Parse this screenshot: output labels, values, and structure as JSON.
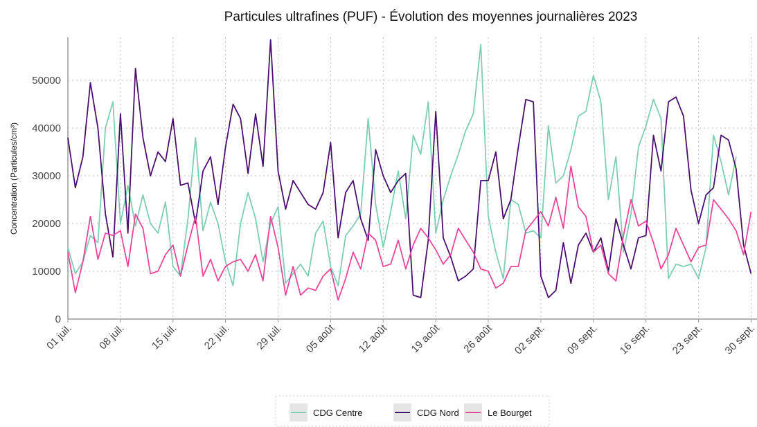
{
  "chart_data": {
    "type": "line",
    "title": "Particules ultrafines (PUF)  - Évolution des moyennes journalières 2023",
    "y_label": "Concentration (Particules/cm³)",
    "categories": [
      "01 juil.",
      null,
      null,
      null,
      null,
      null,
      null,
      "08 juil.",
      null,
      null,
      null,
      null,
      null,
      null,
      "15 juil.",
      null,
      null,
      null,
      null,
      null,
      null,
      "22 juil.",
      null,
      null,
      null,
      null,
      null,
      null,
      "29 juil.",
      null,
      null,
      null,
      null,
      null,
      null,
      "05 août",
      null,
      null,
      null,
      null,
      null,
      null,
      "12 août",
      null,
      null,
      null,
      null,
      null,
      null,
      "19 août",
      null,
      null,
      null,
      null,
      null,
      null,
      "26 août",
      null,
      null,
      null,
      null,
      null,
      null,
      "02 sept.",
      null,
      null,
      null,
      null,
      null,
      null,
      "09 sept.",
      null,
      null,
      null,
      null,
      null,
      null,
      "16 sept.",
      null,
      null,
      null,
      null,
      null,
      null,
      "23 sept.",
      null,
      null,
      null,
      null,
      null,
      null,
      "30 sept."
    ],
    "series": [
      {
        "name": "CDG Centre",
        "color": "#7fcdb4",
        "values": [
          15000,
          9500,
          12000,
          17500,
          16000,
          40000,
          45500,
          20000,
          28000,
          19500,
          26000,
          20000,
          18000,
          24500,
          11000,
          9000,
          21000,
          38000,
          18500,
          24500,
          20000,
          12000,
          7000,
          20000,
          26500,
          21000,
          12000,
          20000,
          23500,
          7500,
          9500,
          11500,
          9000,
          18000,
          20500,
          11000,
          7000,
          17500,
          19500,
          22000,
          42000,
          24000,
          15000,
          22500,
          31000,
          21000,
          38500,
          34500,
          45500,
          18000,
          25000,
          30000,
          34500,
          39500,
          43000,
          57500,
          21500,
          14000,
          8500,
          25000,
          24000,
          18000,
          18500,
          17000,
          40500,
          28500,
          30000,
          35500,
          42500,
          43500,
          51000,
          45500,
          25000,
          34000,
          14000,
          22000,
          36000,
          40500,
          46000,
          42000,
          8500,
          11500,
          11000,
          11500,
          8500,
          15000,
          38500,
          33000,
          26000,
          34000,
          null,
          null
        ]
      },
      {
        "name": "CDG Nord",
        "color": "#4b0f6e",
        "values": [
          38000,
          27500,
          34000,
          49500,
          40000,
          22000,
          13000,
          43000,
          18000,
          52500,
          38000,
          30000,
          35000,
          33000,
          42000,
          28000,
          28500,
          20000,
          31000,
          34000,
          24000,
          36000,
          45000,
          42000,
          30500,
          43000,
          32000,
          58500,
          31000,
          23000,
          29000,
          26500,
          24000,
          23000,
          26500,
          37000,
          17000,
          26500,
          29000,
          21000,
          16500,
          35500,
          30000,
          26500,
          29000,
          30500,
          5000,
          4500,
          16500,
          43500,
          17000,
          13000,
          8000,
          9000,
          10500,
          29000,
          29000,
          35000,
          21000,
          25000,
          36000,
          46000,
          45500,
          9000,
          4500,
          6000,
          16000,
          7500,
          15500,
          18000,
          14000,
          17000,
          10000,
          21000,
          15500,
          10500,
          17000,
          17500,
          38500,
          31000,
          45500,
          46500,
          42500,
          27000,
          20000,
          26000,
          27500,
          38500,
          37500,
          31500,
          15500,
          9500
        ]
      },
      {
        "name": "Le Bourget",
        "color": "#e8489a",
        "values": [
          14000,
          5500,
          12000,
          21500,
          12500,
          18000,
          17500,
          18500,
          11000,
          22000,
          19000,
          9500,
          10000,
          13500,
          15500,
          9000,
          15500,
          21500,
          9000,
          12500,
          8000,
          11000,
          12000,
          12500,
          10000,
          13500,
          8000,
          21500,
          15000,
          5000,
          11000,
          5000,
          6500,
          6000,
          9000,
          10500,
          4000,
          8500,
          14000,
          10500,
          18000,
          16500,
          11000,
          11500,
          16500,
          10500,
          15500,
          19000,
          17000,
          14500,
          11500,
          13500,
          19000,
          16500,
          14000,
          10500,
          10000,
          6500,
          7500,
          11000,
          11000,
          18500,
          20500,
          22500,
          19500,
          25500,
          19000,
          32000,
          23500,
          21500,
          14000,
          15500,
          9500,
          8000,
          17500,
          25000,
          19500,
          20500,
          16000,
          10500,
          13500,
          19000,
          15500,
          12000,
          15000,
          15500,
          25000,
          23000,
          21000,
          18500,
          13500,
          22500
        ]
      }
    ],
    "ylim": [
      0,
      59000
    ],
    "yticks": [
      0,
      10000,
      20000,
      30000,
      40000,
      50000
    ],
    "grid": true,
    "legend": "bottom"
  }
}
